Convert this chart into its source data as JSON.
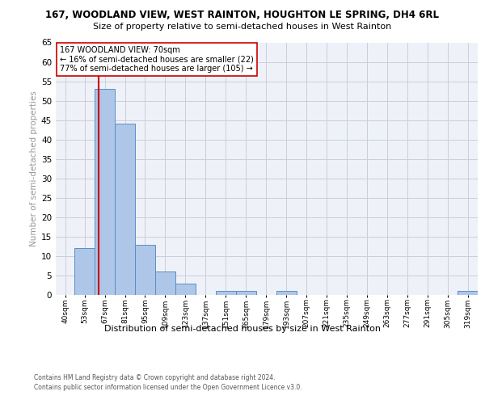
{
  "title_line1": "167, WOODLAND VIEW, WEST RAINTON, HOUGHTON LE SPRING, DH4 6RL",
  "title_line2": "Size of property relative to semi-detached houses in West Rainton",
  "xlabel_bottom": "Distribution of semi-detached houses by size in West Rainton",
  "ylabel": "Number of semi-detached properties",
  "footer_line1": "Contains HM Land Registry data © Crown copyright and database right 2024.",
  "footer_line2": "Contains public sector information licensed under the Open Government Licence v3.0.",
  "annotation_line1": "167 WOODLAND VIEW: 70sqm",
  "annotation_line2": "← 16% of semi-detached houses are smaller (22)",
  "annotation_line3": "77% of semi-detached houses are larger (105) →",
  "bar_color": "#aec6e8",
  "bar_edge_color": "#5a8fc2",
  "property_line_color": "#cc0000",
  "property_size": 70,
  "bin_starts": [
    40,
    53,
    67,
    81,
    95,
    109,
    123,
    137,
    151,
    165,
    179,
    193,
    207,
    221,
    235,
    249,
    263,
    277,
    291,
    305,
    319
  ],
  "bin_width": 14,
  "counts": [
    0,
    12,
    53,
    44,
    13,
    6,
    3,
    0,
    1,
    1,
    0,
    1,
    0,
    0,
    0,
    0,
    0,
    0,
    0,
    0,
    1
  ],
  "xlim_start": 40,
  "xlim_end": 333,
  "ylim_max": 65,
  "yticks": [
    0,
    5,
    10,
    15,
    20,
    25,
    30,
    35,
    40,
    45,
    50,
    55,
    60,
    65
  ],
  "grid_color": "#ccccdd",
  "background_color": "#eef2f8",
  "title1_fontsize": 8.5,
  "title2_fontsize": 8.0,
  "ylabel_fontsize": 7.5,
  "xtick_fontsize": 6.5,
  "ytick_fontsize": 7.5,
  "annotation_fontsize": 7.0,
  "footer_fontsize": 5.5
}
